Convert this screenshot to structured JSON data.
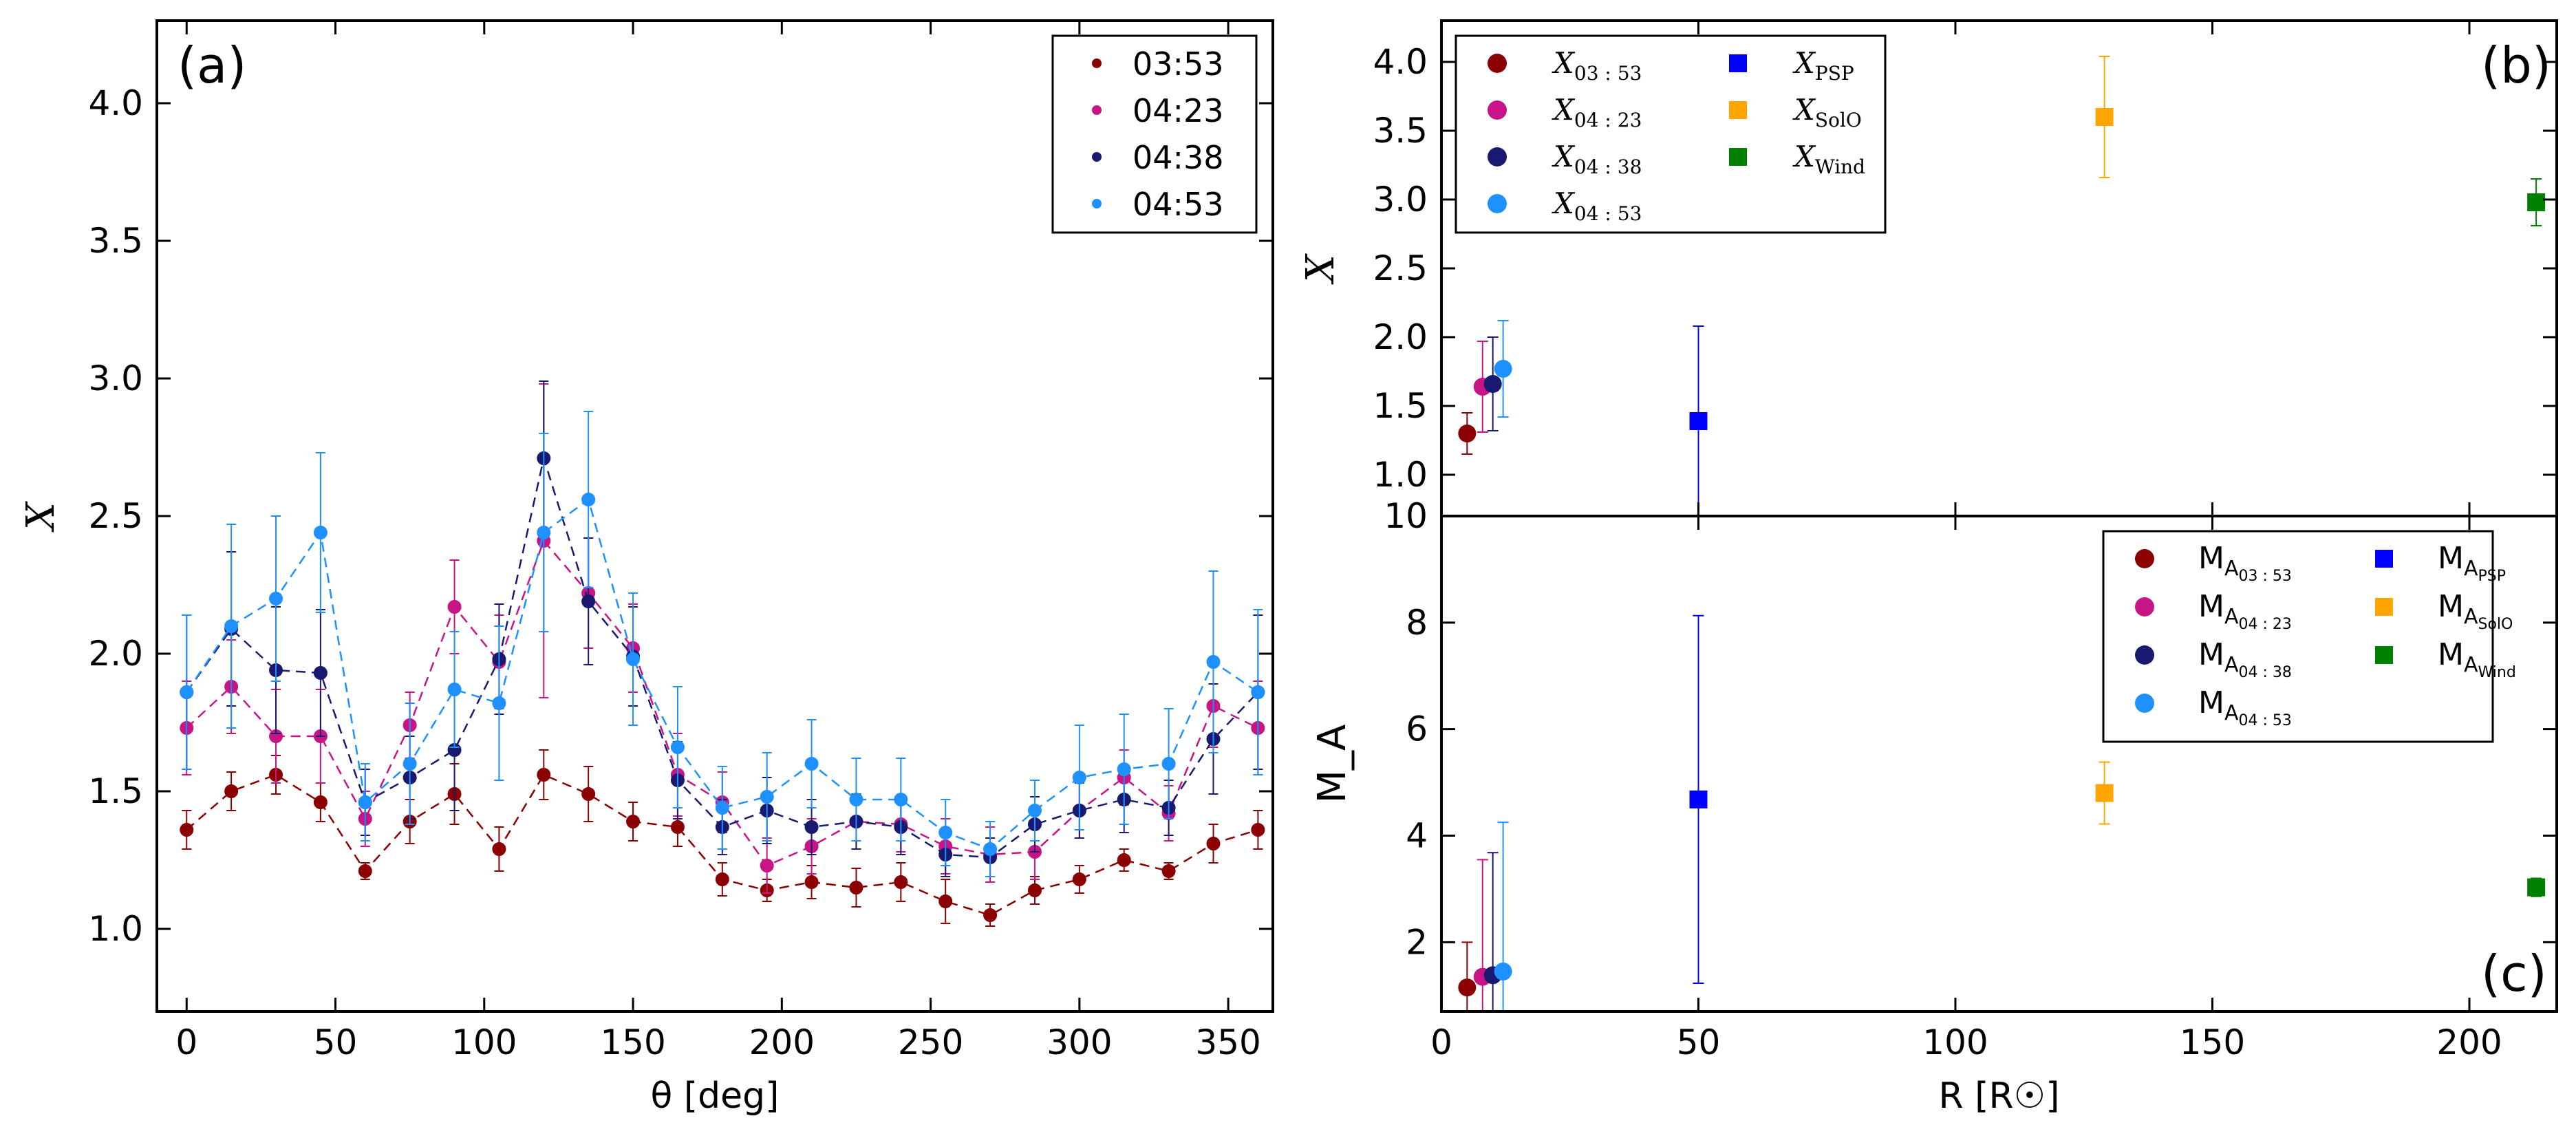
{
  "figure_title": "",
  "chart_data": [
    {
      "panel": "a",
      "type": "line",
      "panel_label": "(a)",
      "xlabel": "θ [deg]",
      "ylabel": "X",
      "xlim": [
        -10,
        365
      ],
      "ylim": [
        0.7,
        4.3
      ],
      "xticks": [
        0,
        50,
        100,
        150,
        200,
        250,
        300,
        350
      ],
      "yticks": [
        1.0,
        1.5,
        2.0,
        2.5,
        3.0,
        3.5,
        4.0
      ],
      "xtick_labels": [
        "0",
        "50",
        "100",
        "150",
        "200",
        "250",
        "300",
        "350"
      ],
      "ytick_labels": [
        "1.0",
        "1.5",
        "2.0",
        "2.5",
        "3.0",
        "3.5",
        "4.0"
      ],
      "legend_position": "top-right",
      "x": [
        0,
        15,
        30,
        45,
        60,
        75,
        90,
        105,
        120,
        135,
        150,
        165,
        180,
        195,
        210,
        225,
        240,
        255,
        270,
        285,
        300,
        315,
        330,
        345,
        360
      ],
      "series": [
        {
          "name": "03:53",
          "color": "#8b0000",
          "values": [
            1.36,
            1.5,
            1.56,
            1.46,
            1.21,
            1.39,
            1.49,
            1.29,
            1.56,
            1.49,
            1.39,
            1.37,
            1.18,
            1.14,
            1.17,
            1.15,
            1.17,
            1.1,
            1.05,
            1.14,
            1.18,
            1.25,
            1.21,
            1.31,
            1.36
          ],
          "errors": [
            0.07,
            0.07,
            0.07,
            0.07,
            0.03,
            0.08,
            0.11,
            0.08,
            0.09,
            0.1,
            0.07,
            0.07,
            0.06,
            0.04,
            0.06,
            0.07,
            0.07,
            0.08,
            0.04,
            0.05,
            0.05,
            0.04,
            0.03,
            0.07,
            0.07
          ]
        },
        {
          "name": "04:23",
          "color": "#c71585",
          "values": [
            1.73,
            1.88,
            1.7,
            1.7,
            1.4,
            1.74,
            2.17,
            1.97,
            2.41,
            2.22,
            2.02,
            1.56,
            1.46,
            1.23,
            1.3,
            1.39,
            1.38,
            1.3,
            1.27,
            1.28,
            1.43,
            1.55,
            1.42,
            1.81,
            1.73
          ],
          "errors": [
            0.17,
            0.17,
            0.17,
            0.17,
            0.1,
            0.12,
            0.17,
            0.17,
            0.57,
            0.2,
            0.16,
            0.15,
            0.11,
            0.1,
            0.1,
            0.1,
            0.1,
            0.1,
            0.1,
            0.1,
            0.1,
            0.1,
            0.1,
            0.15,
            0.17
          ]
        },
        {
          "name": "04:38",
          "color": "#191970",
          "values": [
            1.86,
            2.09,
            1.94,
            1.93,
            1.46,
            1.55,
            1.65,
            1.98,
            2.71,
            2.19,
            1.99,
            1.54,
            1.37,
            1.43,
            1.37,
            1.39,
            1.37,
            1.27,
            1.26,
            1.38,
            1.43,
            1.47,
            1.44,
            1.69,
            1.86
          ],
          "errors": [
            0.28,
            0.28,
            0.23,
            0.23,
            0.12,
            0.15,
            0.22,
            0.2,
            0.28,
            0.23,
            0.18,
            0.14,
            0.1,
            0.12,
            0.1,
            0.1,
            0.1,
            0.08,
            0.07,
            0.1,
            0.1,
            0.12,
            0.1,
            0.2,
            0.28
          ]
        },
        {
          "name": "04:53",
          "color": "#1e90ff",
          "values": [
            1.86,
            2.1,
            2.2,
            2.44,
            1.46,
            1.6,
            1.87,
            1.82,
            2.44,
            2.56,
            1.98,
            1.66,
            1.44,
            1.48,
            1.6,
            1.47,
            1.47,
            1.35,
            1.29,
            1.43,
            1.55,
            1.58,
            1.6,
            1.97,
            1.86
          ],
          "errors": [
            0.28,
            0.37,
            0.3,
            0.29,
            0.14,
            0.22,
            0.21,
            0.28,
            0.36,
            0.32,
            0.24,
            0.22,
            0.15,
            0.16,
            0.16,
            0.15,
            0.15,
            0.12,
            0.1,
            0.11,
            0.19,
            0.2,
            0.2,
            0.33,
            0.3
          ]
        }
      ]
    },
    {
      "panel": "b",
      "type": "scatter",
      "panel_label": "(b)",
      "xlabel": "",
      "ylabel": "X",
      "xlim": [
        0,
        217
      ],
      "ylim": [
        0.7,
        4.3
      ],
      "xticks": [
        0,
        50,
        100,
        150,
        200
      ],
      "yticks": [
        1.0,
        1.5,
        2.0,
        2.5,
        3.0,
        3.5,
        4.0
      ],
      "ytick_labels": [
        "1.0",
        "1.5",
        "2.0",
        "2.5",
        "3.0",
        "3.5",
        "4.0"
      ],
      "legend_position": "top-left",
      "series": [
        {
          "name": "X_03:53",
          "base": "X",
          "sub": "03 : 53",
          "marker": "circle",
          "color": "#8b0000",
          "x": 5,
          "y": 1.3,
          "err_low": 0.15,
          "err_high": 0.15
        },
        {
          "name": "X_04:23",
          "base": "X",
          "sub": "04 : 23",
          "marker": "circle",
          "color": "#c71585",
          "x": 8,
          "y": 1.64,
          "err_low": 0.33,
          "err_high": 0.33
        },
        {
          "name": "X_04:38",
          "base": "X",
          "sub": "04 : 38",
          "marker": "circle",
          "color": "#191970",
          "x": 10,
          "y": 1.66,
          "err_low": 0.34,
          "err_high": 0.34
        },
        {
          "name": "X_04:53",
          "base": "X",
          "sub": "04 : 53",
          "marker": "circle",
          "color": "#1e90ff",
          "x": 12,
          "y": 1.77,
          "err_low": 0.35,
          "err_high": 0.35
        },
        {
          "name": "X_PSP",
          "base": "X",
          "sub": "PSP",
          "marker": "square",
          "color": "#0000ff",
          "x": 50,
          "y": 1.39,
          "err_low": 0.69,
          "err_high": 0.69
        },
        {
          "name": "X_SolO",
          "base": "X",
          "sub": "SolO",
          "marker": "square",
          "color": "#ffa500",
          "x": 129,
          "y": 3.6,
          "err_low": 0.44,
          "err_high": 0.44
        },
        {
          "name": "X_Wind",
          "base": "X",
          "sub": "Wind",
          "marker": "square",
          "color": "#008000",
          "x": 213,
          "y": 2.98,
          "err_low": 0.17,
          "err_high": 0.17
        }
      ]
    },
    {
      "panel": "c",
      "type": "scatter",
      "panel_label": "(c)",
      "xlabel": "R [R☉]",
      "ylabel": "M_A",
      "xlim": [
        0,
        217
      ],
      "ylim": [
        0.7,
        10
      ],
      "xticks": [
        0,
        50,
        100,
        150,
        200
      ],
      "xtick_labels": [
        "0",
        "50",
        "100",
        "150",
        "200"
      ],
      "yticks": [
        2,
        4,
        6,
        8,
        10
      ],
      "ytick_labels": [
        "2",
        "4",
        "6",
        "8",
        "10"
      ],
      "legend_position": "top-right",
      "series": [
        {
          "name": "M_A_03:53",
          "base": "M",
          "sub": "A",
          "subsub": "03 : 53",
          "marker": "circle",
          "color": "#8b0000",
          "x": 5,
          "y": 1.15,
          "err_low": 0.45,
          "err_high": 0.85
        },
        {
          "name": "M_A_04:23",
          "base": "M",
          "sub": "A",
          "subsub": "04 : 23",
          "marker": "circle",
          "color": "#c71585",
          "x": 8,
          "y": 1.35,
          "err_low": 0.65,
          "err_high": 2.2
        },
        {
          "name": "M_A_04:38",
          "base": "M",
          "sub": "A",
          "subsub": "04 : 38",
          "marker": "circle",
          "color": "#191970",
          "x": 10,
          "y": 1.38,
          "err_low": 0.68,
          "err_high": 2.3
        },
        {
          "name": "M_A_04:53",
          "base": "M",
          "sub": "A",
          "subsub": "04 : 53",
          "marker": "circle",
          "color": "#1e90ff",
          "x": 12,
          "y": 1.45,
          "err_low": 0.75,
          "err_high": 2.8
        },
        {
          "name": "M_A_PSP",
          "base": "M",
          "sub": "A",
          "subsub": "PSP",
          "marker": "square",
          "color": "#0000ff",
          "x": 50,
          "y": 4.68,
          "err_low": 3.45,
          "err_high": 3.45
        },
        {
          "name": "M_A_SolO",
          "base": "M",
          "sub": "A",
          "subsub": "SolO",
          "marker": "square",
          "color": "#ffa500",
          "x": 129,
          "y": 4.8,
          "err_low": 0.58,
          "err_high": 0.58
        },
        {
          "name": "M_A_Wind",
          "base": "M",
          "sub": "A",
          "subsub": "Wind",
          "marker": "square",
          "color": "#008000",
          "x": 213,
          "y": 3.03,
          "err_low": 0.17,
          "err_high": 0.17
        }
      ]
    }
  ]
}
